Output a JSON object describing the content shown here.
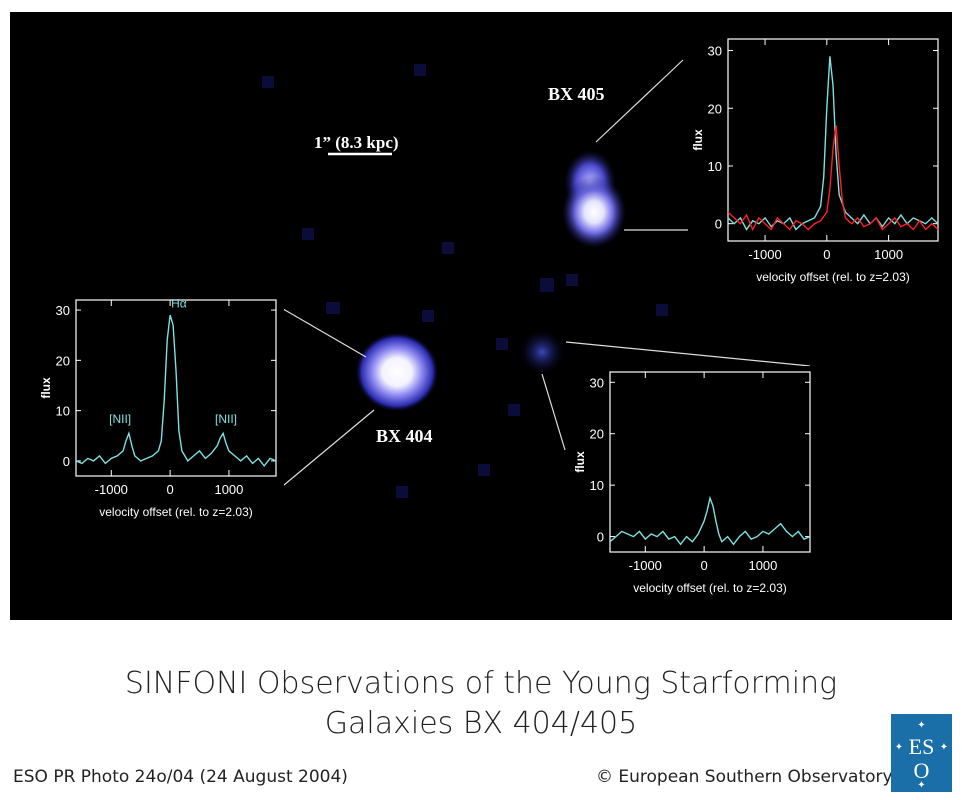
{
  "caption": {
    "title_line1": "SINFONI Observations of the Young Starforming",
    "title_line2": "Galaxies BX 404/405",
    "photo_id": "ESO PR Photo 24o/04 (24 August 2004)",
    "copyright": "© European Southern Observatory"
  },
  "logo": {
    "letters": "ESO"
  },
  "image_labels": {
    "bx405": "BX 405",
    "bx404": "BX 404",
    "scale_bar": "1” (8.3 kpc)"
  },
  "colors": {
    "background": "#000000",
    "spectrum_line": "#7fe0e0",
    "second_line": "#ff2020",
    "logo_blue": "#1a6fa8",
    "galaxy_core": "#ffffff",
    "galaxy_glow": "#3a3ad8"
  },
  "chart_data": [
    {
      "type": "line",
      "name": "BX 405 spectrum",
      "xlabel": "velocity offset (rel. to z=2.03)",
      "ylabel": "flux",
      "xlim": [
        -1600,
        1800
      ],
      "ylim": [
        -3,
        32
      ],
      "xticks": [
        -1000,
        0,
        1000
      ],
      "yticks": [
        0,
        10,
        20,
        30
      ],
      "xtick_labels": [
        "-1000",
        "0",
        "1000"
      ],
      "ytick_labels": [
        "0",
        "10",
        "20",
        "30"
      ],
      "annotations": [],
      "series": [
        {
          "name": "cyan",
          "color": "#7fe0e0",
          "x": [
            -1600,
            -1500,
            -1400,
            -1300,
            -1200,
            -1100,
            -1000,
            -900,
            -800,
            -700,
            -600,
            -500,
            -400,
            -300,
            -200,
            -100,
            -50,
            0,
            50,
            100,
            150,
            200,
            300,
            400,
            500,
            600,
            700,
            800,
            900,
            1000,
            1100,
            1200,
            1300,
            1400,
            1500,
            1600,
            1700,
            1800
          ],
          "y": [
            1,
            0,
            1,
            -1,
            0.5,
            0,
            1,
            -0.5,
            0.5,
            0,
            1,
            -1,
            0,
            0.5,
            1,
            3,
            8,
            20,
            29,
            24,
            12,
            5,
            2,
            1,
            0,
            1.5,
            0,
            1,
            -0.5,
            1,
            0,
            1.5,
            0,
            1,
            0.5,
            0,
            1,
            0
          ]
        },
        {
          "name": "red",
          "color": "#ff2020",
          "x": [
            -1600,
            -1500,
            -1400,
            -1300,
            -1200,
            -1100,
            -1000,
            -900,
            -800,
            -700,
            -600,
            -500,
            -400,
            -300,
            -200,
            -100,
            0,
            50,
            100,
            150,
            200,
            250,
            300,
            400,
            500,
            600,
            700,
            800,
            900,
            1000,
            1100,
            1200,
            1300,
            1400,
            1500,
            1600,
            1700,
            1800
          ],
          "y": [
            2,
            1,
            0,
            1.5,
            -1,
            1,
            0,
            -1,
            1,
            0,
            -1,
            0.5,
            0,
            -1,
            0,
            0.5,
            2,
            6,
            13,
            17,
            10,
            4,
            1,
            0,
            1,
            -0.5,
            0,
            1,
            -1,
            0,
            1,
            -0.5,
            0,
            -1,
            0.5,
            -1,
            0,
            -1
          ]
        }
      ]
    },
    {
      "type": "line",
      "name": "BX 404 spectrum",
      "xlabel": "velocity offset (rel. to z=2.03)",
      "ylabel": "flux",
      "xlim": [
        -1600,
        1800
      ],
      "ylim": [
        -3,
        32
      ],
      "xticks": [
        -1000,
        0,
        1000
      ],
      "yticks": [
        0,
        10,
        20,
        30
      ],
      "xtick_labels": [
        "-1000",
        "0",
        "1000"
      ],
      "ytick_labels": [
        "0",
        "10",
        "20",
        "30"
      ],
      "annotations": [
        {
          "text": "Hα",
          "x": 150,
          "y": 30.5
        },
        {
          "text": "[NII]",
          "x": -850,
          "y": 7.5
        },
        {
          "text": "[NII]",
          "x": 950,
          "y": 7.5
        }
      ],
      "series": [
        {
          "name": "cyan",
          "color": "#7fe0e0",
          "x": [
            -1600,
            -1500,
            -1400,
            -1300,
            -1200,
            -1100,
            -1000,
            -900,
            -800,
            -750,
            -700,
            -650,
            -600,
            -500,
            -400,
            -300,
            -200,
            -150,
            -100,
            -50,
            0,
            50,
            100,
            150,
            200,
            300,
            400,
            500,
            600,
            700,
            800,
            850,
            900,
            950,
            1000,
            1100,
            1200,
            1300,
            1400,
            1500,
            1600,
            1700,
            1800
          ],
          "y": [
            0,
            -0.5,
            0.5,
            0,
            1,
            -0.5,
            0.5,
            1,
            2,
            4,
            5.5,
            3,
            1,
            0,
            0.5,
            1,
            2,
            4,
            12,
            24,
            29,
            27,
            18,
            6,
            2,
            0,
            1,
            2,
            0.5,
            1.5,
            3,
            4.5,
            5.5,
            3.5,
            2,
            1,
            0,
            1,
            -0.5,
            0.5,
            -1,
            0.5,
            0
          ]
        }
      ]
    },
    {
      "type": "line",
      "name": "Faint companion spectrum",
      "xlabel": "velocity offset (rel. to z=2.03)",
      "ylabel": "flux",
      "xlim": [
        -1600,
        1800
      ],
      "ylim": [
        -3,
        32
      ],
      "xticks": [
        -1000,
        0,
        1000
      ],
      "yticks": [
        0,
        10,
        20,
        30
      ],
      "xtick_labels": [
        "-1000",
        "0",
        "1000"
      ],
      "ytick_labels": [
        "0",
        "10",
        "20",
        "30"
      ],
      "annotations": [],
      "series": [
        {
          "name": "cyan",
          "color": "#7fe0e0",
          "x": [
            -1600,
            -1500,
            -1400,
            -1300,
            -1200,
            -1100,
            -1000,
            -900,
            -800,
            -700,
            -600,
            -500,
            -400,
            -300,
            -200,
            -100,
            0,
            50,
            100,
            150,
            200,
            250,
            300,
            400,
            500,
            600,
            700,
            800,
            900,
            1000,
            1100,
            1200,
            1300,
            1400,
            1500,
            1600,
            1700,
            1800
          ],
          "y": [
            -1,
            0,
            1,
            0.5,
            0,
            1,
            -0.5,
            0.5,
            0,
            1,
            -0.5,
            0,
            -1.5,
            0,
            -1,
            0.5,
            3,
            5,
            7.5,
            6,
            3,
            0.5,
            -1,
            0,
            -1.5,
            0,
            1,
            -0.5,
            0,
            1,
            0.5,
            1.5,
            2.5,
            1,
            0,
            1,
            -0.5,
            0
          ]
        }
      ]
    }
  ]
}
